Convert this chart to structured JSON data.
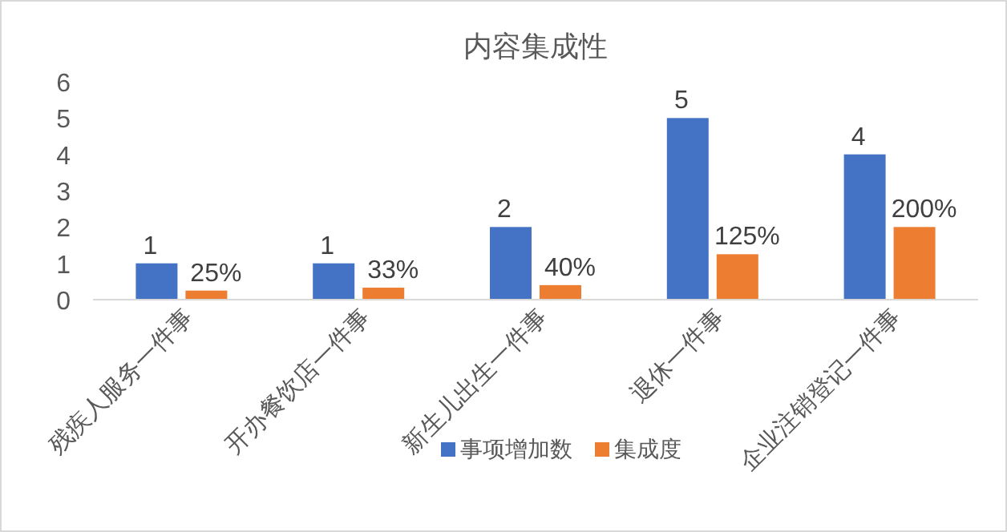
{
  "chart_data": {
    "type": "bar",
    "title": "内容集成性",
    "categories": [
      "残疾人服务一件事",
      "开办餐饮店一件事",
      "新生儿出生一件事",
      "退休一件事",
      "企业注销登记一件事"
    ],
    "series": [
      {
        "name": "事项增加数",
        "color": "#4472c4",
        "values": [
          1,
          1,
          2,
          5,
          4
        ],
        "value_labels": [
          "1",
          "1",
          "2",
          "5",
          "4"
        ]
      },
      {
        "name": "集成度",
        "color": "#ed7d31",
        "values": [
          0.25,
          0.33,
          0.4,
          1.25,
          2
        ],
        "value_labels": [
          "25%",
          "33%",
          "40%",
          "125%",
          "200%"
        ]
      }
    ],
    "ylim": [
      0,
      6
    ],
    "yticks": [
      0,
      1,
      2,
      3,
      4,
      5,
      6
    ],
    "grid": false,
    "legend": "bottom"
  }
}
